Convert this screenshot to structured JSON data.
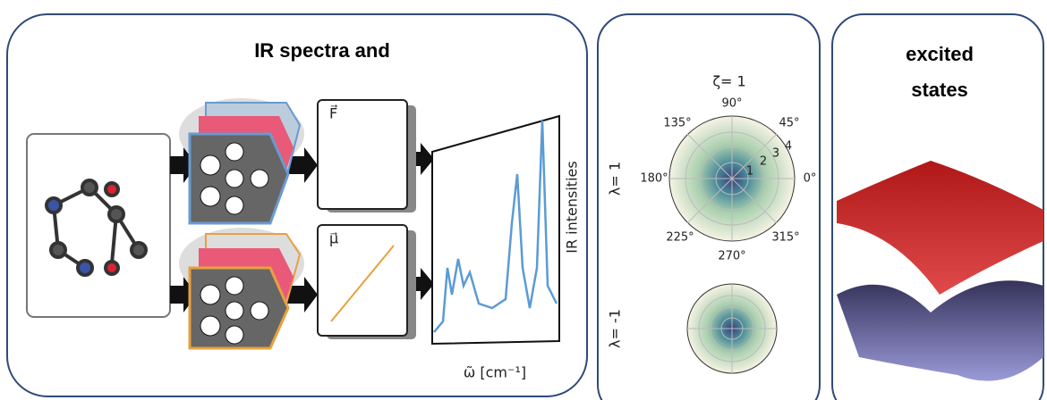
{
  "panels": [
    {
      "title": "IR spectra and",
      "force_label": "F⃗",
      "dipole_label": "μ⃗",
      "y_axis": "IR intensities",
      "x_axis": "ω̃ [cm⁻¹]"
    },
    {
      "title": "ζ=  1",
      "angle_labels": [
        "90°",
        "45°",
        "0°",
        "315°",
        "270°",
        "225°",
        "180°",
        "135°"
      ],
      "radial_labels": [
        "1",
        "2",
        "3",
        "4"
      ],
      "row_labels": [
        "λ=  1",
        "λ= -1"
      ]
    },
    {
      "title_lines": [
        "excited",
        "states"
      ]
    }
  ]
}
